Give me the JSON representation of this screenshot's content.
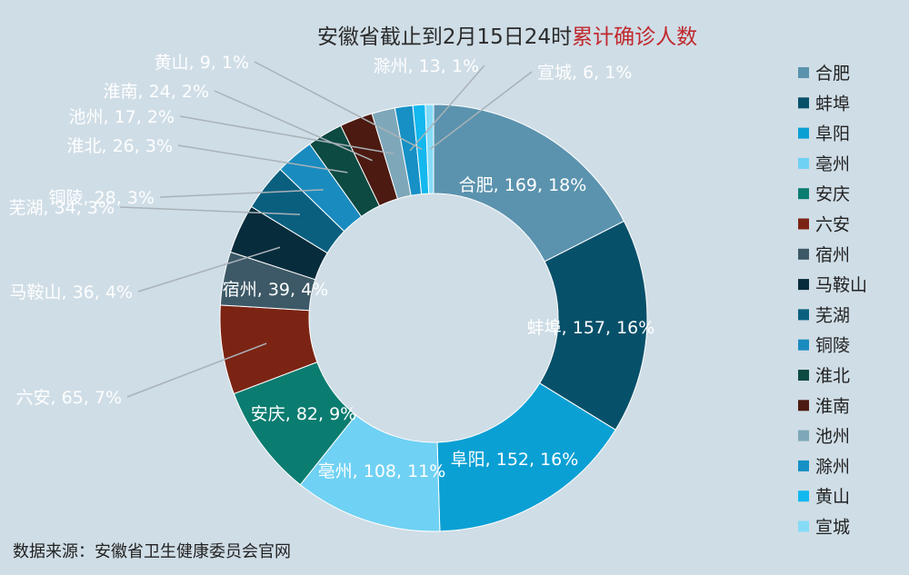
{
  "chart_data": {
    "type": "pie",
    "variant": "donut",
    "title_parts": [
      "安徽省截止到2月15日24时",
      "累计确诊人数"
    ],
    "source": "数据来源：安徽省卫生健康委员会官网",
    "legend_position": "right",
    "categories": [
      "合肥",
      "蚌埠",
      "阜阳",
      "亳州",
      "安庆",
      "六安",
      "宿州",
      "马鞍山",
      "芜湖",
      "铜陵",
      "淮北",
      "淮南",
      "池州",
      "滁州",
      "黄山",
      "宣城"
    ],
    "values": [
      169,
      157,
      152,
      108,
      82,
      65,
      39,
      36,
      34,
      28,
      26,
      24,
      17,
      13,
      9,
      6
    ],
    "labels": [
      "合肥, 169, 18%",
      "蚌埠, 157, 16%",
      "阜阳, 152, 16%",
      "亳州, 108, 11%",
      "安庆, 82, 9%",
      "六安, 65, 7%",
      "宿州, 39, 4%",
      "马鞍山, 36, 4%",
      "芜湖, 34, 3%",
      "铜陵, 28, 3%",
      "淮北, 26, 3%",
      "淮南, 24, 2%",
      "池州, 17, 2%",
      "滁州, 13, 1%",
      "黄山, 9, 1%",
      "宣城, 6, 1%"
    ],
    "colors": [
      "#5b93ae",
      "#07506a",
      "#0ba0d4",
      "#6fd1f3",
      "#0b7c70",
      "#7b2414",
      "#3d5967",
      "#072c3c",
      "#0a5f7f",
      "#1a8bbf",
      "#0c4a42",
      "#4c1a10",
      "#7ea8ba",
      "#1690c5",
      "#13b8ee",
      "#85dbf7"
    ]
  }
}
